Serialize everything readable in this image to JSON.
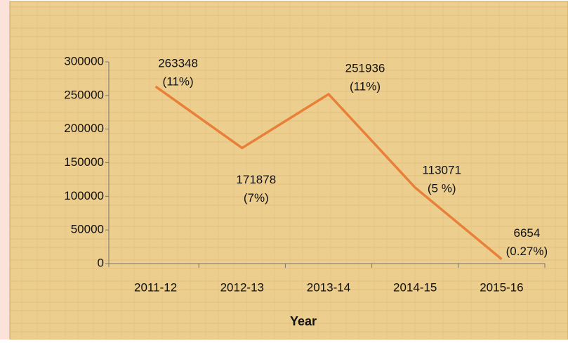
{
  "chart_data": {
    "type": "line",
    "x_label": "Year",
    "categories": [
      "2011-12",
      "2012-13",
      "2013-14",
      "2014-15",
      "2015-16"
    ],
    "series": [
      {
        "name": null,
        "color": "#e8803a",
        "values": [
          263348,
          171878,
          251936,
          113071,
          6654
        ]
      }
    ],
    "value_labels": [
      [
        "263348",
        "(11%)"
      ],
      [
        "171878",
        "(7%)"
      ],
      [
        "251936",
        "(11%)"
      ],
      [
        "113071",
        "(5 %)"
      ],
      [
        "6654",
        "(0.27%)"
      ]
    ],
    "ylim": [
      0,
      300000
    ],
    "yticks": [
      0,
      50000,
      100000,
      150000,
      200000,
      250000,
      300000
    ],
    "grid": false
  }
}
